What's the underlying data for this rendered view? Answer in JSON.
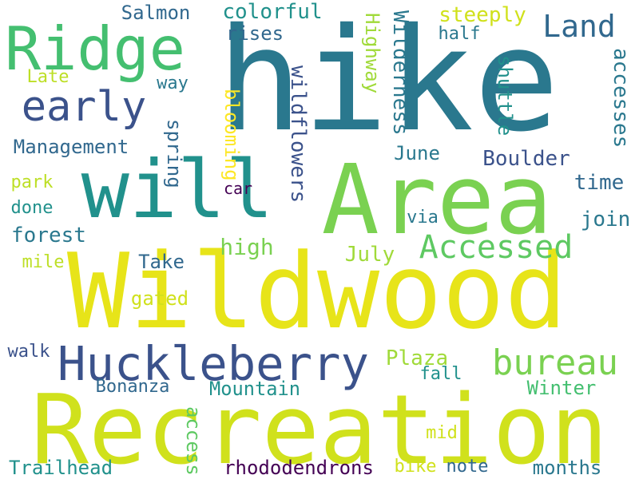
{
  "words": [
    {
      "text": "hike",
      "color": "#2a788e",
      "vertical": false
    },
    {
      "text": "Wildwood",
      "color": "#e7e419",
      "vertical": false
    },
    {
      "text": "Recreation",
      "color": "#d0e11c",
      "vertical": false
    },
    {
      "text": "will",
      "color": "#21918c",
      "vertical": false
    },
    {
      "text": "Area",
      "color": "#7ad151",
      "vertical": false
    },
    {
      "text": "Ridge",
      "color": "#44bf70",
      "vertical": false
    },
    {
      "text": "Huckleberry",
      "color": "#3b528b",
      "vertical": false
    },
    {
      "text": "early",
      "color": "#3b528b",
      "vertical": false
    },
    {
      "text": "bureau",
      "color": "#7ad151",
      "vertical": false
    },
    {
      "text": "Accessed",
      "color": "#5ec962",
      "vertical": false
    },
    {
      "text": "Land",
      "color": "#31688e",
      "vertical": false
    },
    {
      "text": "Salmon",
      "color": "#31688e",
      "vertical": false
    },
    {
      "text": "colorful",
      "color": "#21918c",
      "vertical": false
    },
    {
      "text": "rises",
      "color": "#31688e",
      "vertical": false
    },
    {
      "text": "steeply",
      "color": "#d0e11c",
      "vertical": false
    },
    {
      "text": "half",
      "color": "#2a788e",
      "vertical": false
    },
    {
      "text": "Highway",
      "color": "#a0da39",
      "vertical": true
    },
    {
      "text": "Wilderness",
      "color": "#2a788e",
      "vertical": true
    },
    {
      "text": "accesses",
      "color": "#2a788e",
      "vertical": true
    },
    {
      "text": "shuttle",
      "color": "#21918c",
      "vertical": true
    },
    {
      "text": "Late",
      "color": "#bddf26",
      "vertical": false
    },
    {
      "text": "way",
      "color": "#2a788e",
      "vertical": false
    },
    {
      "text": "Management",
      "color": "#31688e",
      "vertical": false
    },
    {
      "text": "wildflowers",
      "color": "#3b528b",
      "vertical": true
    },
    {
      "text": "blooming",
      "color": "#fde725",
      "vertical": true
    },
    {
      "text": "spring",
      "color": "#31688e",
      "vertical": true
    },
    {
      "text": "June",
      "color": "#2a788e",
      "vertical": false
    },
    {
      "text": "Boulder",
      "color": "#3b528b",
      "vertical": false
    },
    {
      "text": "time",
      "color": "#31688e",
      "vertical": false
    },
    {
      "text": "park",
      "color": "#bddf26",
      "vertical": false
    },
    {
      "text": "car",
      "color": "#440154",
      "vertical": false
    },
    {
      "text": "done",
      "color": "#21918c",
      "vertical": false
    },
    {
      "text": "via",
      "color": "#2a788e",
      "vertical": false
    },
    {
      "text": "join",
      "color": "#2a788e",
      "vertical": false
    },
    {
      "text": "forest",
      "color": "#2a788e",
      "vertical": false
    },
    {
      "text": "high",
      "color": "#7ad151",
      "vertical": false
    },
    {
      "text": "July",
      "color": "#a0da39",
      "vertical": false
    },
    {
      "text": "mile",
      "color": "#bddf26",
      "vertical": false
    },
    {
      "text": "Take",
      "color": "#31688e",
      "vertical": false
    },
    {
      "text": "gated",
      "color": "#d0e11c",
      "vertical": false
    },
    {
      "text": "walk",
      "color": "#3b528b",
      "vertical": false
    },
    {
      "text": "Plaza",
      "color": "#a0da39",
      "vertical": false
    },
    {
      "text": "fall",
      "color": "#21918c",
      "vertical": false
    },
    {
      "text": "Bonanza",
      "color": "#31688e",
      "vertical": false
    },
    {
      "text": "Mountain",
      "color": "#21918c",
      "vertical": false
    },
    {
      "text": "Winter",
      "color": "#44bf70",
      "vertical": false
    },
    {
      "text": "access",
      "color": "#5ec962",
      "vertical": true
    },
    {
      "text": "mid",
      "color": "#d0e11c",
      "vertical": false
    },
    {
      "text": "Trailhead",
      "color": "#21918c",
      "vertical": false
    },
    {
      "text": "rhododendrons",
      "color": "#440154",
      "vertical": false
    },
    {
      "text": "bike",
      "color": "#d0e11c",
      "vertical": false
    },
    {
      "text": "note",
      "color": "#31688e",
      "vertical": false
    },
    {
      "text": "months",
      "color": "#2a788e",
      "vertical": false
    }
  ]
}
